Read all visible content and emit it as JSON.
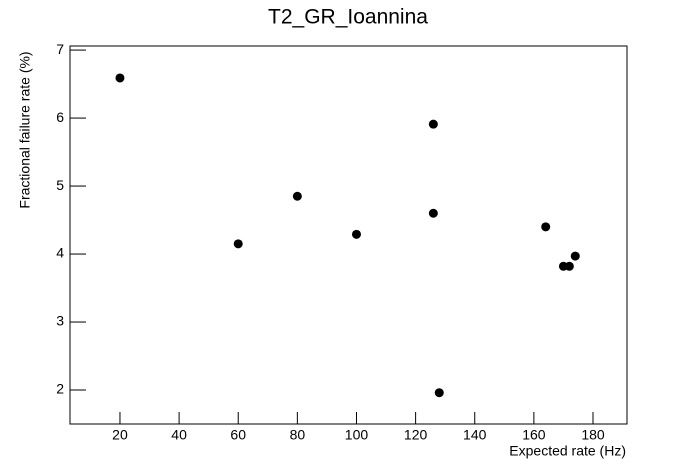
{
  "chart_data": {
    "type": "scatter",
    "title": "T2_GR_Ioannina",
    "x_label": "Expected rate (Hz)",
    "y_label": "Fractional failure rate (%)",
    "x": [
      20,
      60,
      80,
      100,
      126,
      126,
      128,
      164,
      170,
      172,
      174
    ],
    "values": [
      6.59,
      4.15,
      4.85,
      4.29,
      5.91,
      4.6,
      1.96,
      4.4,
      3.82,
      3.82,
      3.97
    ],
    "color": "#000000",
    "xlim": [
      3.1,
      191.5
    ],
    "xticks": [
      20,
      40,
      60,
      80,
      100,
      120,
      140,
      160,
      180
    ],
    "ylim": [
      1.5,
      7.06
    ],
    "yticks": [
      2,
      3,
      4,
      5,
      6,
      7
    ]
  }
}
